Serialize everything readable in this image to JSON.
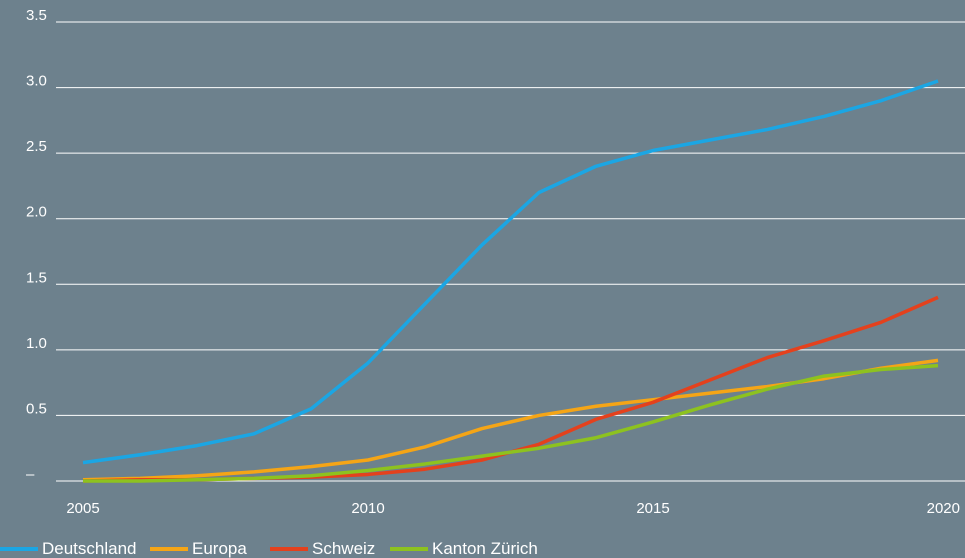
{
  "chart_data": {
    "type": "line",
    "x": [
      2005,
      2006,
      2007,
      2008,
      2009,
      2010,
      2011,
      2012,
      2013,
      2014,
      2015,
      2016,
      2017,
      2018,
      2019,
      2020
    ],
    "series": [
      {
        "name": "Deutschland",
        "color": "#1ba6e4",
        "values": [
          0.14,
          0.2,
          0.27,
          0.36,
          0.55,
          0.9,
          1.35,
          1.8,
          2.2,
          2.4,
          2.52,
          2.6,
          2.68,
          2.78,
          2.9,
          3.05
        ]
      },
      {
        "name": "Europa",
        "color": "#f5a516",
        "values": [
          0.01,
          0.02,
          0.04,
          0.07,
          0.11,
          0.16,
          0.26,
          0.4,
          0.5,
          0.57,
          0.62,
          0.67,
          0.72,
          0.78,
          0.86,
          0.92
        ]
      },
      {
        "name": "Schweiz",
        "color": "#e4411d",
        "values": [
          0,
          0.01,
          0.01,
          0.02,
          0.03,
          0.05,
          0.09,
          0.16,
          0.28,
          0.47,
          0.6,
          0.77,
          0.94,
          1.07,
          1.21,
          1.4
        ]
      },
      {
        "name": "Kanton Zürich",
        "color": "#8dc21f",
        "values": [
          0,
          0,
          0.01,
          0.02,
          0.04,
          0.08,
          0.13,
          0.19,
          0.25,
          0.33,
          0.45,
          0.58,
          0.7,
          0.8,
          0.85,
          0.88
        ]
      }
    ],
    "xlim": [
      2005,
      2020
    ],
    "xticks": [
      2005,
      2010,
      2015,
      2020
    ],
    "ylim": [
      0,
      3.5
    ],
    "yticks": [
      {
        "value": 0,
        "label": "–"
      },
      0.5,
      {
        "value": 1,
        "label": "1.0"
      },
      1.5,
      {
        "value": 2,
        "label": "2.0"
      },
      2.5,
      {
        "value": 3,
        "label": "3.0"
      },
      3.5
    ],
    "grid": true
  }
}
